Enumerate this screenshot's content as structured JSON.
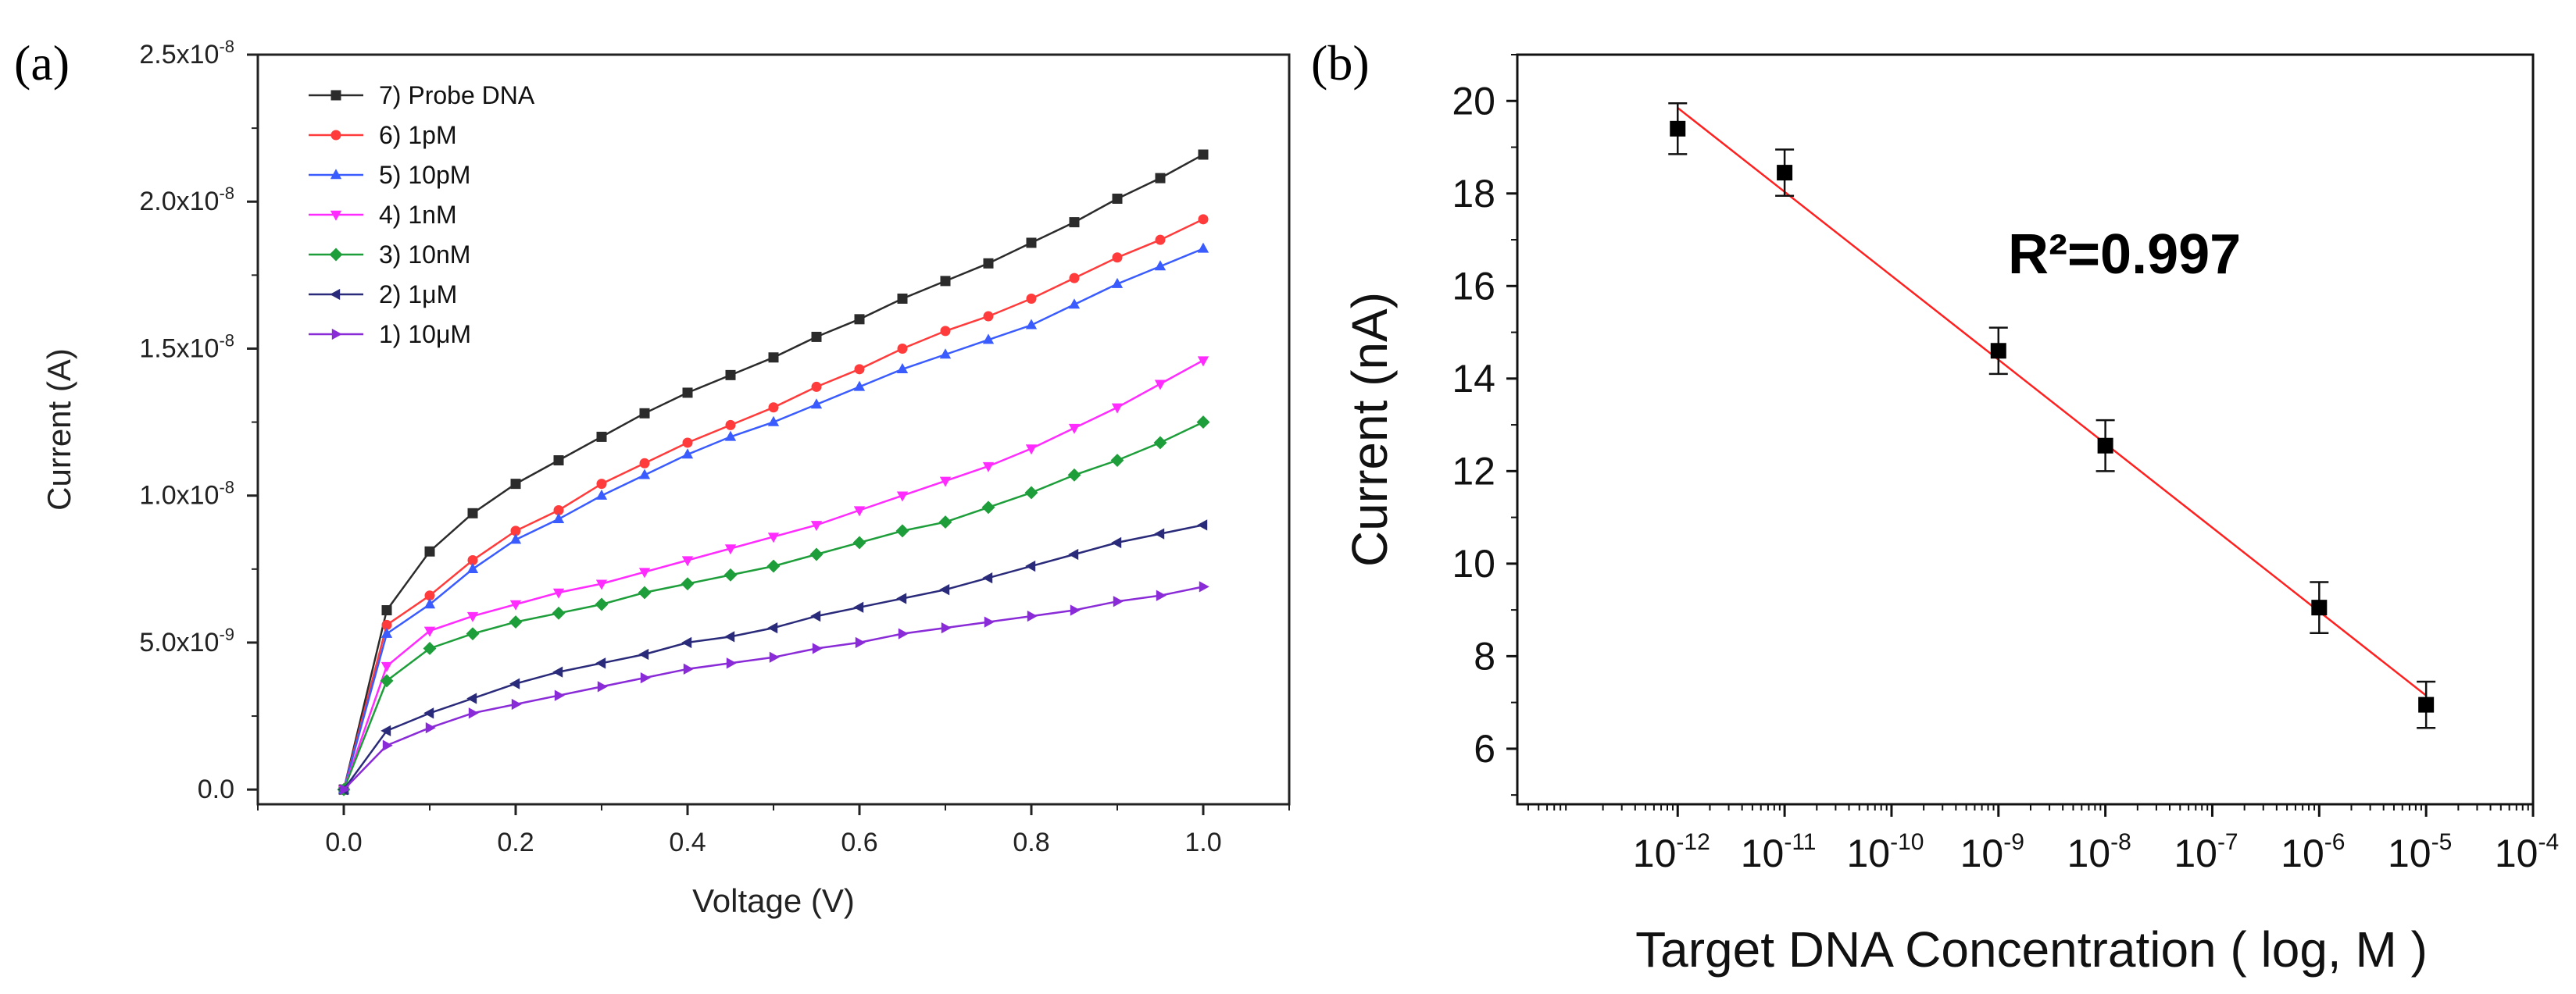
{
  "panels": {
    "a": {
      "label": "(a)"
    },
    "b": {
      "label": "(b)"
    }
  },
  "chart_data": [
    {
      "type": "line",
      "panel": "(a)",
      "xlabel": "Voltage (V)",
      "ylabel": "Current (A)",
      "xlim": [
        -0.1,
        1.1
      ],
      "ylim": [
        -5e-10,
        2.5e-08
      ],
      "xticks": [
        0.0,
        0.2,
        0.4,
        0.6,
        0.8,
        1.0
      ],
      "xtick_labels": [
        "0.0",
        "0.2",
        "0.4",
        "0.6",
        "0.8",
        "1.0"
      ],
      "yticks": [
        0,
        5e-09,
        1e-08,
        1.5e-08,
        2e-08,
        2.5e-08
      ],
      "ytick_labels": [
        {
          "mantissa": "0.0",
          "exp": ""
        },
        {
          "mantissa": "5.0x10",
          "exp": "-9"
        },
        {
          "mantissa": "1.0x10",
          "exp": "-8"
        },
        {
          "mantissa": "1.5x10",
          "exp": "-8"
        },
        {
          "mantissa": "2.0x10",
          "exp": "-8"
        },
        {
          "mantissa": "2.5x10",
          "exp": "-8"
        }
      ],
      "legend_position": "top-left",
      "x": [
        0.0,
        0.05,
        0.1,
        0.15,
        0.2,
        0.25,
        0.3,
        0.35,
        0.4,
        0.45,
        0.5,
        0.55,
        0.6,
        0.65,
        0.7,
        0.75,
        0.8,
        0.85,
        0.9,
        0.95,
        1.0
      ],
      "series": [
        {
          "name": "7) Probe DNA",
          "color": "#2b2b2b",
          "marker": "square",
          "values": [
            0,
            6.1e-09,
            8.1e-09,
            9.4e-09,
            1.04e-08,
            1.12e-08,
            1.2e-08,
            1.28e-08,
            1.35e-08,
            1.41e-08,
            1.47e-08,
            1.54e-08,
            1.6e-08,
            1.67e-08,
            1.73e-08,
            1.79e-08,
            1.86e-08,
            1.93e-08,
            2.01e-08,
            2.08e-08,
            2.16e-08
          ]
        },
        {
          "name": "6) 1pM",
          "color": "#ff3b3b",
          "marker": "circle",
          "values": [
            0,
            5.6e-09,
            6.6e-09,
            7.8e-09,
            8.8e-09,
            9.5e-09,
            1.04e-08,
            1.11e-08,
            1.18e-08,
            1.24e-08,
            1.3e-08,
            1.37e-08,
            1.43e-08,
            1.5e-08,
            1.56e-08,
            1.61e-08,
            1.67e-08,
            1.74e-08,
            1.81e-08,
            1.87e-08,
            1.94e-08
          ]
        },
        {
          "name": "5) 10pM",
          "color": "#3a5cff",
          "marker": "triangle-up",
          "values": [
            0,
            5.3e-09,
            6.3e-09,
            7.5e-09,
            8.5e-09,
            9.2e-09,
            1e-08,
            1.07e-08,
            1.14e-08,
            1.2e-08,
            1.25e-08,
            1.31e-08,
            1.37e-08,
            1.43e-08,
            1.48e-08,
            1.53e-08,
            1.58e-08,
            1.65e-08,
            1.72e-08,
            1.78e-08,
            1.84e-08
          ]
        },
        {
          "name": "4) 1nM",
          "color": "#ff2bff",
          "marker": "triangle-down",
          "values": [
            0,
            4.2e-09,
            5.4e-09,
            5.9e-09,
            6.3e-09,
            6.7e-09,
            7e-09,
            7.4e-09,
            7.8e-09,
            8.2e-09,
            8.6e-09,
            9e-09,
            9.5e-09,
            1e-08,
            1.05e-08,
            1.1e-08,
            1.16e-08,
            1.23e-08,
            1.3e-08,
            1.38e-08,
            1.46e-08
          ]
        },
        {
          "name": "3) 10nM",
          "color": "#1e9e3a",
          "marker": "diamond",
          "values": [
            0,
            3.7e-09,
            4.8e-09,
            5.3e-09,
            5.7e-09,
            6e-09,
            6.3e-09,
            6.7e-09,
            7e-09,
            7.3e-09,
            7.6e-09,
            8e-09,
            8.4e-09,
            8.8e-09,
            9.1e-09,
            9.6e-09,
            1.01e-08,
            1.07e-08,
            1.12e-08,
            1.18e-08,
            1.25e-08
          ]
        },
        {
          "name": "2) 1μM",
          "color": "#2a2a7a",
          "marker": "triangle-left",
          "values": [
            0,
            2e-09,
            2.6e-09,
            3.1e-09,
            3.6e-09,
            4e-09,
            4.3e-09,
            4.6e-09,
            5e-09,
            5.2e-09,
            5.5e-09,
            5.9e-09,
            6.2e-09,
            6.5e-09,
            6.8e-09,
            7.2e-09,
            7.6e-09,
            8e-09,
            8.4e-09,
            8.7e-09,
            9e-09
          ]
        },
        {
          "name": "1) 10μM",
          "color": "#8a2bd8",
          "marker": "triangle-right",
          "values": [
            0,
            1.5e-09,
            2.1e-09,
            2.6e-09,
            2.9e-09,
            3.2e-09,
            3.5e-09,
            3.8e-09,
            4.1e-09,
            4.3e-09,
            4.5e-09,
            4.8e-09,
            5e-09,
            5.3e-09,
            5.5e-09,
            5.7e-09,
            5.9e-09,
            6.1e-09,
            6.4e-09,
            6.6e-09,
            6.9e-09
          ]
        }
      ]
    },
    {
      "type": "scatter",
      "panel": "(b)",
      "xlabel": "Target DNA Concentration ( log, M )",
      "ylabel": "Current (nA)",
      "xscale": "log",
      "xlim_log10": [
        -13.5,
        -4
      ],
      "ylim": [
        4.8,
        21
      ],
      "yticks": [
        6,
        8,
        10,
        12,
        14,
        16,
        18,
        20
      ],
      "ytick_labels": [
        "6",
        "8",
        "10",
        "12",
        "14",
        "16",
        "18",
        "20"
      ],
      "xtick_exponents": [
        -12,
        -11,
        -10,
        -9,
        -8,
        -7,
        -6,
        -5,
        -4
      ],
      "xtick_labels": [
        {
          "base": "10",
          "exp": "-12"
        },
        {
          "base": "10",
          "exp": "-11"
        },
        {
          "base": "10",
          "exp": "-10"
        },
        {
          "base": "10",
          "exp": "-9"
        },
        {
          "base": "10",
          "exp": "-8"
        },
        {
          "base": "10",
          "exp": "-7"
        },
        {
          "base": "10",
          "exp": "-6"
        },
        {
          "base": "10",
          "exp": "-5"
        },
        {
          "base": "10",
          "exp": "-4"
        }
      ],
      "points_log10_x": [
        -12,
        -11,
        -9,
        -8,
        -6,
        -5
      ],
      "values": [
        19.4,
        18.45,
        14.6,
        12.55,
        9.05,
        6.95
      ],
      "errors": [
        0.55,
        0.5,
        0.5,
        0.55,
        0.55,
        0.5
      ],
      "marker_color": "#000000",
      "fit": {
        "type": "linear",
        "color": "#ff2020",
        "x_log10": [
          -12,
          -5
        ],
        "y": [
          19.85,
          7.15
        ]
      },
      "annotation": {
        "text": "R²=0.997",
        "position": "upper-right"
      }
    }
  ]
}
